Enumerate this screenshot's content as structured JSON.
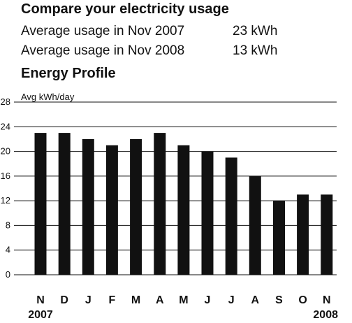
{
  "header": {
    "title": "Compare your electricity usage",
    "rows": [
      {
        "label": "Average usage in Nov 2007",
        "value": "23 kWh"
      },
      {
        "label": "Average usage in Nov 2008",
        "value": "13 kWh"
      }
    ]
  },
  "chart_data": {
    "type": "bar",
    "title": "Energy Profile",
    "ylabel": "Avg kWh/day",
    "xlabel": "",
    "categories": [
      "N",
      "D",
      "J",
      "F",
      "M",
      "A",
      "M",
      "J",
      "J",
      "A",
      "S",
      "O",
      "N"
    ],
    "values": [
      23,
      23,
      22,
      21,
      22,
      23,
      21,
      20,
      19,
      16,
      12,
      13,
      13
    ],
    "ylim": [
      0,
      28
    ],
    "yticks": [
      0,
      4,
      8,
      12,
      16,
      20,
      24,
      28
    ],
    "year_labels": [
      {
        "category_index": 0,
        "text": "2007"
      },
      {
        "category_index": 12,
        "text": "2008"
      }
    ],
    "grid": true,
    "bar_color": "#111111",
    "grid_color": "#111111"
  }
}
